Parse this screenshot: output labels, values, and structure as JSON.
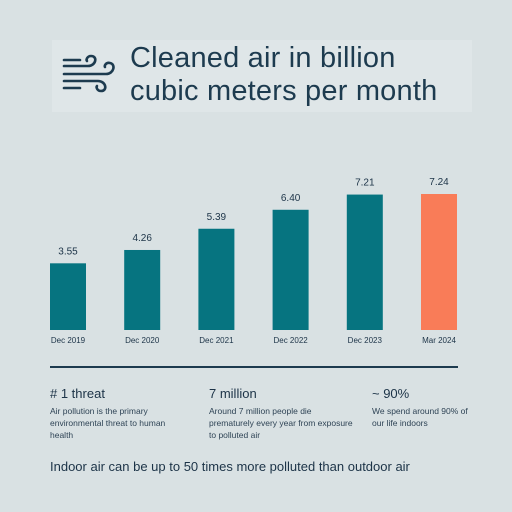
{
  "header": {
    "icon": "wind-icon",
    "title_line1": "Cleaned air in billion",
    "title_line2": "cubic meters per month"
  },
  "chart_data": {
    "type": "bar",
    "categories": [
      "Dec 2019",
      "Dec 2020",
      "Dec 2021",
      "Dec 2022",
      "Dec 2023",
      "Mar 2024"
    ],
    "values": [
      3.55,
      4.26,
      5.39,
      6.4,
      7.21,
      7.24
    ],
    "value_labels": [
      "3.55",
      "4.26",
      "5.39",
      "6.40",
      "7.21",
      "7.24"
    ],
    "title": "Cleaned air in billion cubic meters per month",
    "xlabel": "",
    "ylabel": "",
    "ylim": [
      0,
      7.24
    ],
    "grid": false,
    "colors": {
      "default": "#067480",
      "highlight": "#f97c58",
      "highlight_category": "Mar 2024"
    }
  },
  "stats": [
    {
      "heading": "# 1 threat",
      "desc": "Air pollution is the primary environmental threat to human health"
    },
    {
      "heading": "7 million",
      "desc": "Around 7 million people die prematurely every year from exposure to polluted air"
    },
    {
      "heading": "~ 90%",
      "desc": "We spend around 90% of our life indoors"
    }
  ],
  "footer": "Indoor air can be up to 50 times more polluted than outdoor air"
}
